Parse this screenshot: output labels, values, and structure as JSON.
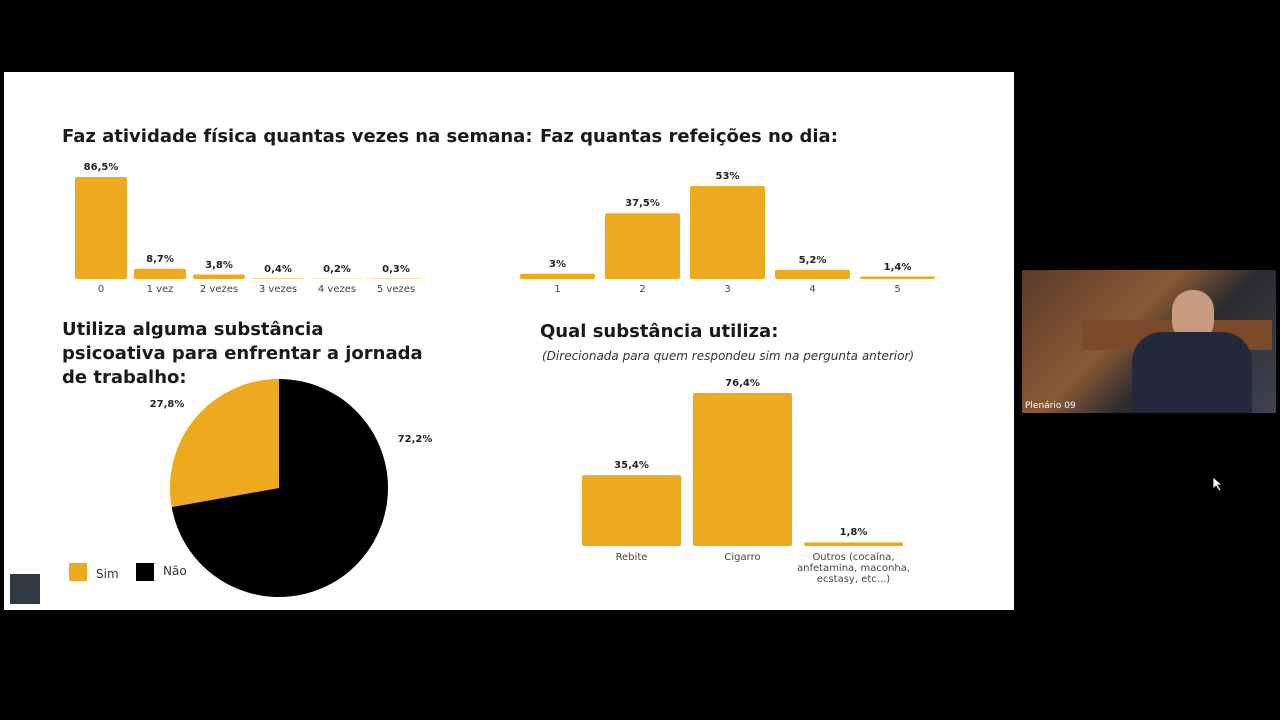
{
  "chart_data": [
    {
      "type": "bar",
      "title": "Faz atividade física quantas vezes na semana:",
      "categories": [
        "0",
        "1 vez",
        "2 vezes",
        "3 vezes",
        "4 vezes",
        "5 vezes"
      ],
      "values": [
        86.5,
        8.7,
        3.8,
        0.4,
        0.2,
        0.3
      ],
      "value_labels": [
        "86,5%",
        "8,7%",
        "3,8%",
        "0,4%",
        "0,2%",
        "0,3%"
      ],
      "color": "#edaa1f"
    },
    {
      "type": "bar",
      "title": "Faz quantas refeições no dia:",
      "categories": [
        "1",
        "2",
        "3",
        "4",
        "5"
      ],
      "values": [
        3,
        37.5,
        53,
        5.2,
        1.4
      ],
      "value_labels": [
        "3%",
        "37,5%",
        "53%",
        "5,2%",
        "1,4%"
      ],
      "color": "#edaa1f"
    },
    {
      "type": "pie",
      "title": "Utiliza alguma substância psicoativa para enfrentar a jornada de trabalho:",
      "categories": [
        "Sim",
        "Não"
      ],
      "values": [
        27.8,
        72.2
      ],
      "value_labels": [
        "27,8%",
        "72,2%"
      ],
      "colors": [
        "#edaa1f",
        "#000000"
      ]
    },
    {
      "type": "bar",
      "title": "Qual substância utiliza:",
      "subtitle": "(Direcionada para quem respondeu sim na pergunta anterior)",
      "categories": [
        "Rebite",
        "Cigarro",
        "Outros (cocaína, anfetamina, maconha, ecstasy, etc...)"
      ],
      "values": [
        35.4,
        76.4,
        1.8
      ],
      "value_labels": [
        "35,4%",
        "76,4%",
        "1,8%"
      ],
      "color": "#edaa1f"
    }
  ],
  "video": {
    "label": "Plenário 09"
  }
}
